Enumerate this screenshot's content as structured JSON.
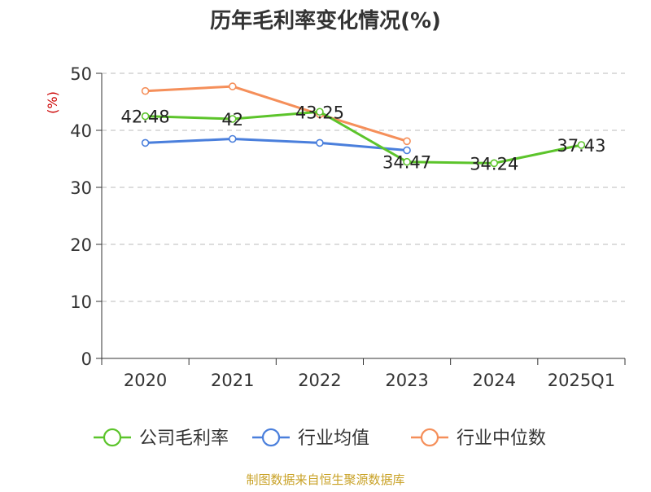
{
  "chart_data": {
    "type": "line",
    "title": "历年毛利率变化情况(%)",
    "ylabel": "(%)",
    "xlabel": "",
    "categories": [
      "2020",
      "2021",
      "2022",
      "2023",
      "2024",
      "2025Q1"
    ],
    "ylim": [
      0,
      50
    ],
    "yticks": [
      0,
      10,
      20,
      30,
      40,
      50
    ],
    "grid": true,
    "legend_position": "bottom",
    "series": [
      {
        "name": "公司毛利率",
        "color": "#5cc42b",
        "values": [
          42.48,
          42,
          43.25,
          34.47,
          34.24,
          37.43
        ],
        "labels": [
          "42.48",
          "42",
          "43.25",
          "34.47",
          "34.24",
          "37.43"
        ]
      },
      {
        "name": "行业均值",
        "color": "#4a7fdc",
        "values": [
          37.8,
          38.5,
          37.8,
          36.5,
          null,
          null
        ]
      },
      {
        "name": "行业中位数",
        "color": "#f58f5a",
        "values": [
          46.9,
          47.7,
          42.8,
          38.1,
          null,
          null
        ]
      }
    ]
  },
  "footer": {
    "source": "制图数据来自恒生聚源数据库"
  }
}
